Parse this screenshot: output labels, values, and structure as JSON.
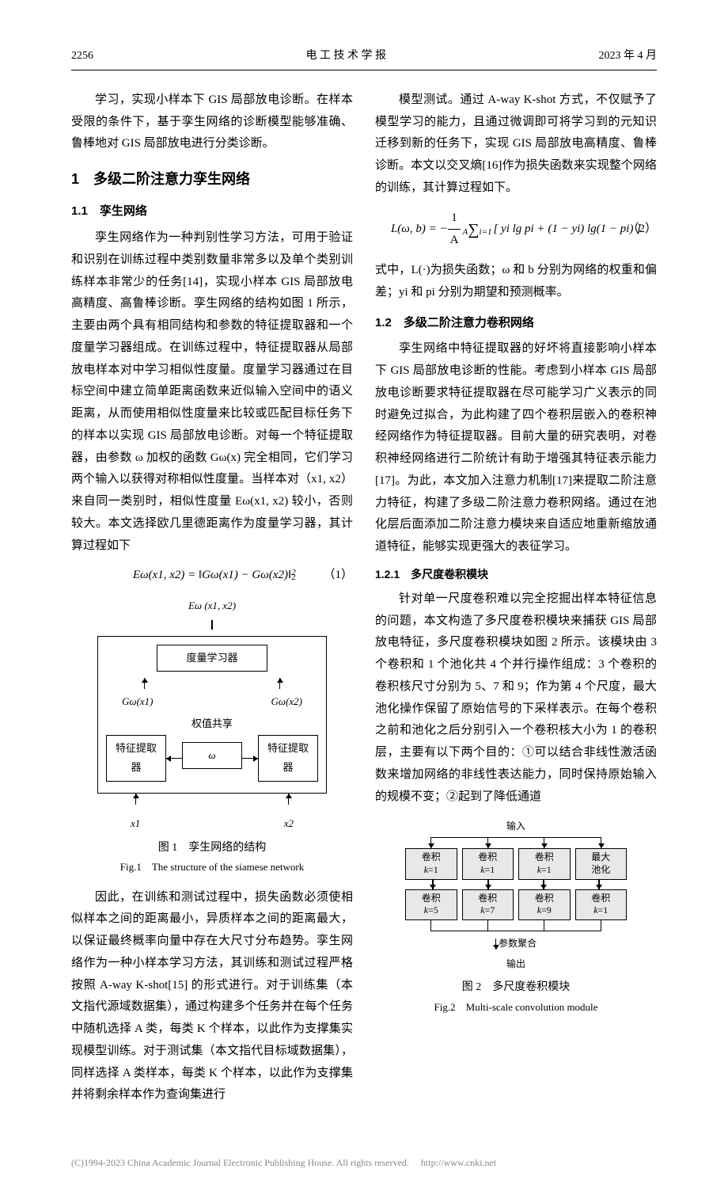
{
  "header": {
    "page_num": "2256",
    "journal": "电 工 技 术 学 报",
    "date": "2023 年 4 月"
  },
  "col1": {
    "para0": "学习，实现小样本下 GIS 局部放电诊断。在样本受限的条件下，基于孪生网络的诊断模型能够准确、鲁棒地对 GIS 局部放电进行分类诊断。",
    "h1": "1　多级二阶注意力孪生网络",
    "h2_1": "1.1　孪生网络",
    "p1": "孪生网络作为一种判别性学习方法，可用于验证和识别在训练过程中类别数量非常多以及单个类别训练样本非常少的任务[14]，实现小样本 GIS 局部放电高精度、高鲁棒诊断。孪生网络的结构如图 1 所示，主要由两个具有相同结构和参数的特征提取器和一个度量学习器组成。在训练过程中，特征提取器从局部放电样本对中学习相似性度量。度量学习器通过在目标空间中建立简单距离函数来近似输入空间中的语义距离，从而使用相似性度量来比较或匹配目标任务下的样本以实现 GIS 局部放电诊断。对每一个特征提取器，由参数 ω 加权的函数 Gω(x) 完全相同，它们学习两个输入以获得对称相似性度量。当样本对（x1, x2）来自同一类别时，相似性度量 Eω(x1, x2) 较小，否则较大。本文选择欧几里德距离作为度量学习器，其计算过程如下",
    "eq1": "Eω(x1, x2) = ‖Gω(x1) − Gω(x2)‖",
    "eq1_sup": "2",
    "eq1_sub": "2",
    "eq1_num": "（1）",
    "fig1": {
      "top": "Eω (x1, x2)",
      "metric": "度量学习器",
      "gw1": "Gω(x1)",
      "gw2": "Gω(x2)",
      "share": "权值共享",
      "omega": "ω",
      "extractor": "特征提取器",
      "x1": "x1",
      "x2": "x2",
      "cap_cn": "图 1　孪生网络的结构",
      "cap_en": "Fig.1　The structure of the siamese network"
    },
    "p2": "因此，在训练和测试过程中，损失函数必须使相似样本之间的距离最小，异质样本之间的距离最大，以保证最终概率向量中存在大尺寸分布趋势。孪生网络作为一种小样本学习方法，其训练和测试过程严格按照 A-way K-shot[15] 的形式进行。对于训练集（本文指代源域数据集），通过构建多个任务并在每个任务中随机选择 A 类，每类 K 个样本，以此作为支撑集实现模型训练。对于测试集（本文指代目标域数据集），同样选择 A 类样本，每类 K 个样本，以此作为支撑集并将剩余样本作为查询集进行"
  },
  "col2": {
    "p0": "模型测试。通过 A-way K-shot 方式，不仅赋予了模型学习的能力，且通过微调即可将学习到的元知识迁移到新的任务下，实现 GIS 局部放电高精度、鲁棒诊断。本文以交叉熵[16]作为损失函数来实现整个网络的训练，其计算过程如下。",
    "eq2_pre": "L(ω, b) = −",
    "eq2_frac_num": "1",
    "eq2_frac_den": "A",
    "eq2_sum_top": "A",
    "eq2_sum_bot": "i=1",
    "eq2_body": "[ yi lg pi + (1 − yi) lg(1 − pi) ]",
    "eq2_num": "（2）",
    "p1": "式中，L(·)为损失函数；ω 和 b 分别为网络的权重和偏差；yi 和 pi 分别为期望和预测概率。",
    "h2_2": "1.2　多级二阶注意力卷积网络",
    "p2": "孪生网络中特征提取器的好坏将直接影响小样本下 GIS 局部放电诊断的性能。考虑到小样本 GIS 局部放电诊断要求特征提取器在尽可能学习广义表示的同时避免过拟合，为此构建了四个卷积层嵌入的卷积神经网络作为特征提取器。目前大量的研究表明，对卷积神经网络进行二阶统计有助于增强其特征表示能力[17]。为此，本文加入注意力机制[17]来提取二阶注意力特征，构建了多级二阶注意力卷积网络。通过在池化层后面添加二阶注意力模块来自适应地重新缩放通道特征，能够实现更强大的表征学习。",
    "h3": "1.2.1　多尺度卷积模块",
    "p3": "针对单一尺度卷积难以完全挖掘出样本特征信息的问题，本文构造了多尺度卷积模块来捕获 GIS 局部放电特征，多尺度卷积模块如图 2 所示。该模块由 3 个卷积和 1 个池化共 4 个并行操作组成：3 个卷积的卷积核尺寸分别为 5、7 和 9；作为第 4 个尺度，最大池化操作保留了原始信号的下采样表示。在每个卷积之前和池化之后分别引入一个卷积核大小为 1 的卷积层，主要有以下两个目的：①可以结合非线性激活函数来增加网络的非线性表达能力，同时保持原始输入的规模不变；②起到了降低通道",
    "fig2": {
      "input": "输入",
      "r1": [
        "卷积\nk=1",
        "卷积\nk=1",
        "卷积\nk=1",
        "最大\n池化"
      ],
      "r2": [
        "卷积\nk=5",
        "卷积\nk=7",
        "卷积\nk=9",
        "卷积\nk=1"
      ],
      "agg": "参数聚合",
      "output": "输出",
      "cap_cn": "图 2　多尺度卷积模块",
      "cap_en": "Fig.2　Multi-scale convolution module"
    }
  },
  "footer": {
    "copyright": "(C)1994-2023 China Academic Journal Electronic Publishing House. All rights reserved.",
    "url": "http://www.cnki.net"
  }
}
